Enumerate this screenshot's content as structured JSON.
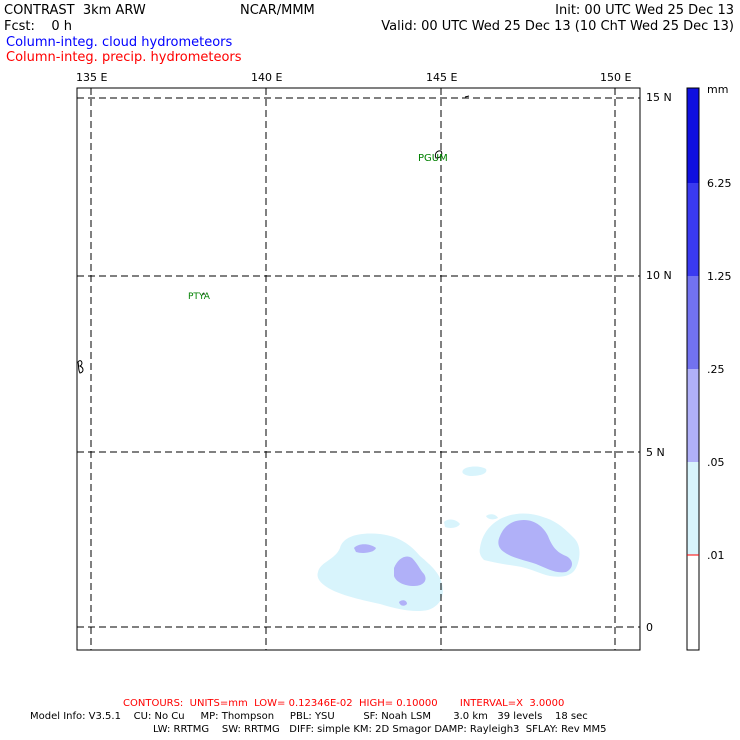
{
  "header": {
    "model": "CONTRAST  3km ARW",
    "fcst": "Fcst:    0 h",
    "center": "NCAR/MMM",
    "init": "Init: 00 UTC Wed 25 Dec 13",
    "valid": "Valid: 00 UTC Wed 25 Dec 13 (10 ChT Wed 25 Dec 13)",
    "field_cloud": "Column-integ. cloud hydrometeors",
    "field_precip": "Column-integ. precip. hydrometeors",
    "field_cloud_color": "#0000ff",
    "field_precip_color": "#ff0000"
  },
  "map": {
    "lon_labels": [
      "135 E",
      "140 E",
      "145 E",
      "150 E"
    ],
    "lat_labels": [
      "15 N",
      "10 N",
      "5 N",
      "0"
    ],
    "stations": [
      "PGUM",
      "PTYA"
    ],
    "station_color": "#008000",
    "grid": "dashed"
  },
  "colorbar": {
    "unit": "mm",
    "labels": [
      "6.25",
      "1.25",
      ".25",
      ".05",
      ".01"
    ],
    "colors": [
      "#1010e0",
      "#3a3af0",
      "#7272f0",
      "#b0b0f8",
      "#d8f4fc",
      "#ffffff"
    ],
    "divider_color": "#ff0000"
  },
  "footer": {
    "contours": "CONTOURS:  UNITS=mm  LOW= 0.12346E-02  HIGH= 0.10000       INTERVAL=X  3.0000",
    "contours_color": "#ff0000",
    "model_info_1": "Model Info: V3.5.1    CU: No Cu     MP: Thompson     PBL: YSU         SF: Noah LSM       3.0 km   39 levels    18 sec",
    "model_info_2": "LW: RRTMG    SW: RRTMG   DIFF: simple KM: 2D Smagor DAMP: Rayleigh3  SFLAY: Rev MM5"
  }
}
